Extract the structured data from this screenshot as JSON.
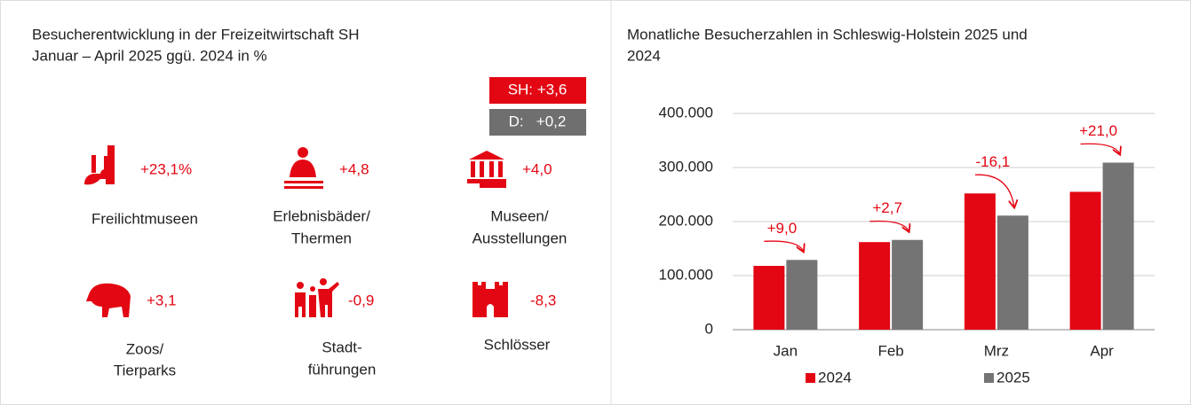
{
  "infographic": {
    "title": [
      "Besucherentwicklung in der Freizeitwirtschaft SH",
      "Januar – April 2025 ggü. 2024 in %"
    ],
    "badges": [
      "SH: +3,6",
      "D:   +0,2"
    ],
    "items": [
      {
        "value": "+23,1%",
        "label": [
          "Freilichtmuseen"
        ]
      },
      {
        "value": "+4,8",
        "label": [
          "Erlebnisbäder/",
          "Thermen"
        ]
      },
      {
        "value": "+4,0",
        "label": [
          "Museen/",
          "Ausstellungen"
        ]
      },
      {
        "value": "+3,1",
        "label": [
          "Zoos/",
          "Tierparks"
        ]
      },
      {
        "value": "-0,9",
        "label": [
          "Stadt-",
          "führungen"
        ]
      },
      {
        "value": "-8,3",
        "label": [
          "Schlösser"
        ]
      }
    ]
  },
  "chart_data": {
    "type": "bar",
    "title": [
      "Monatliche Besucherzahlen in Schleswig-Holstein 2025 und",
      "2024"
    ],
    "categories": [
      "Jan",
      "Feb",
      "Mrz",
      "Apr"
    ],
    "series": [
      {
        "name": "2024",
        "color": "#e30613",
        "values": [
          118000,
          162000,
          252000,
          255000
        ]
      },
      {
        "name": "2025",
        "color": "#747474",
        "values": [
          129000,
          166000,
          211000,
          309000
        ]
      }
    ],
    "change_labels": [
      "+9,0",
      "+2,7",
      "-16,1",
      "+21,0"
    ],
    "ylim": [
      0,
      400000
    ],
    "yticks": [
      0,
      {
        "value": 100000,
        "label": "100.000"
      },
      {
        "value": 200000,
        "label": "200.000"
      },
      {
        "value": 300000,
        "label": "300.000"
      },
      {
        "value": 400000,
        "label": "400.000"
      }
    ],
    "grid": true,
    "legend": "bottom"
  }
}
